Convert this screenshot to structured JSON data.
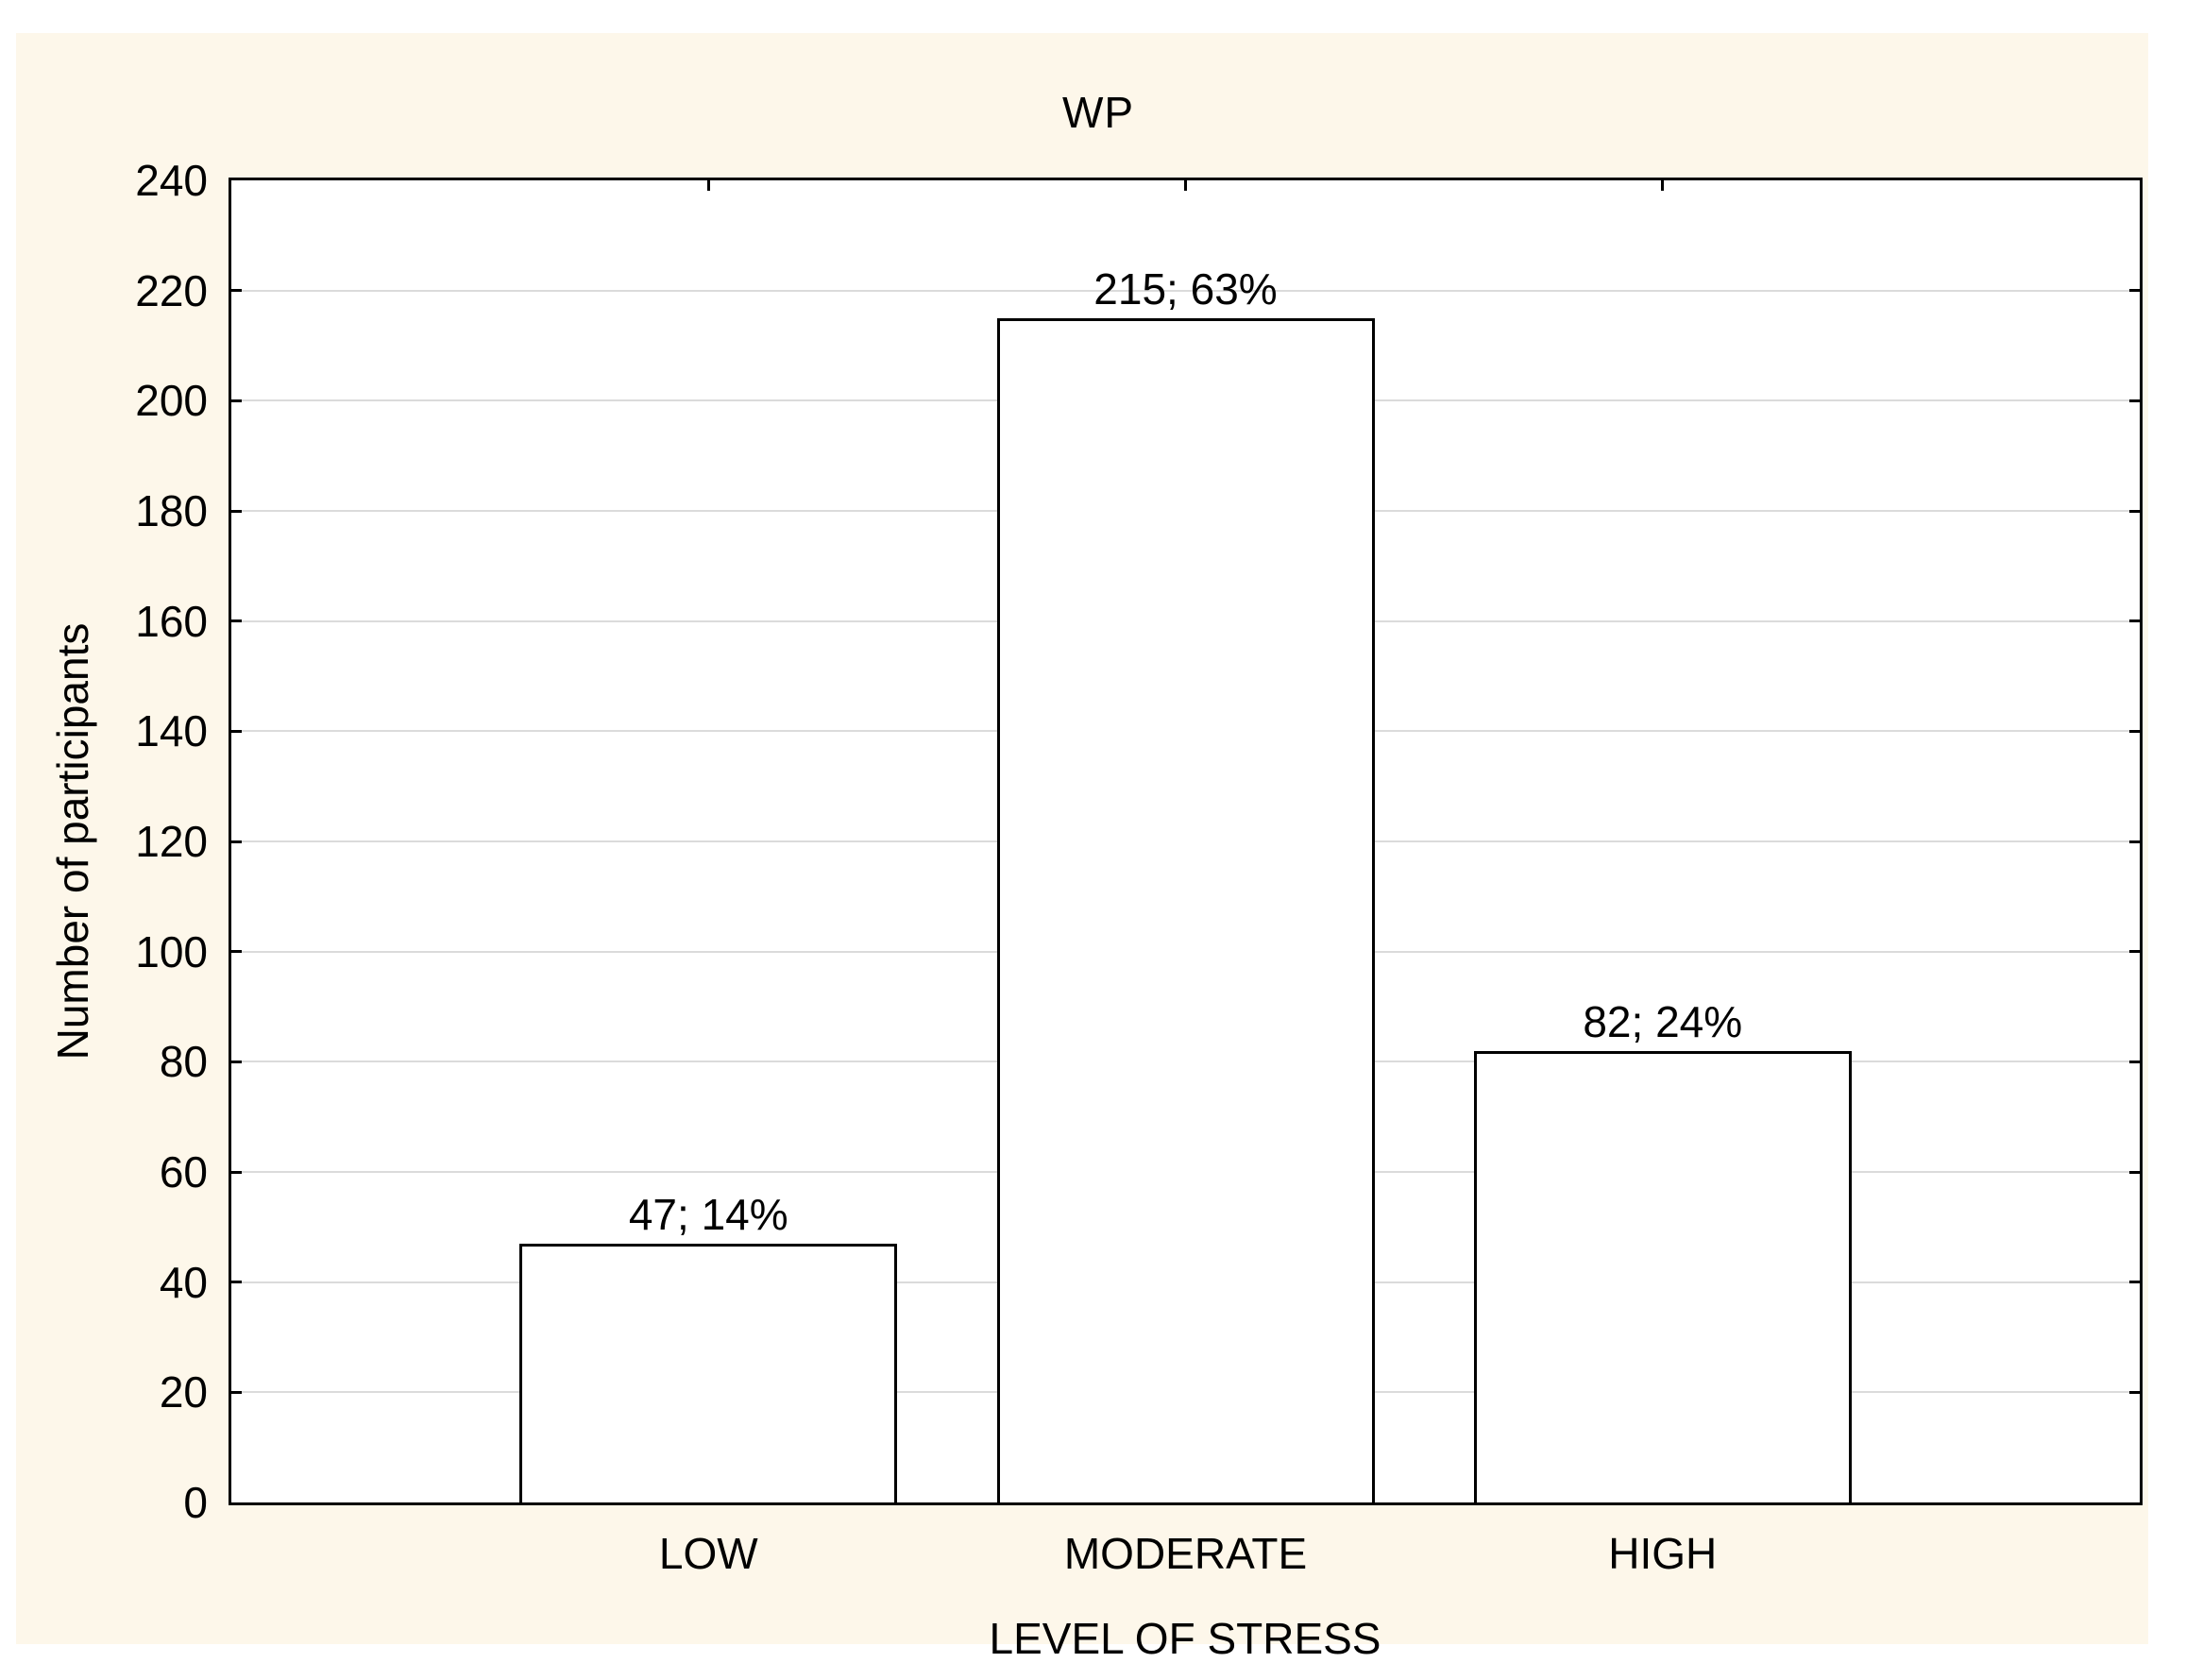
{
  "chart_data": {
    "type": "bar",
    "title": "WP",
    "xlabel": "LEVEL OF STRESS",
    "ylabel": "Number of participants",
    "categories": [
      "LOW",
      "MODERATE",
      "HIGH"
    ],
    "values": [
      47,
      215,
      82
    ],
    "data_labels": [
      "47; 14%",
      "215; 63%",
      "82; 24%"
    ],
    "ylim": [
      0,
      240
    ],
    "ytick_step": 20,
    "grid": "horizontal-only",
    "legend": "none",
    "colors": {
      "page_background": "#FFFFFF",
      "panel_background": "#FDF7EA",
      "plot_background": "#FFFFFF",
      "bar_fill": "#FFFFFF",
      "bar_border": "#000000",
      "gridline": "#DBDBDB",
      "axis": "#000000",
      "text": "#000000"
    }
  }
}
